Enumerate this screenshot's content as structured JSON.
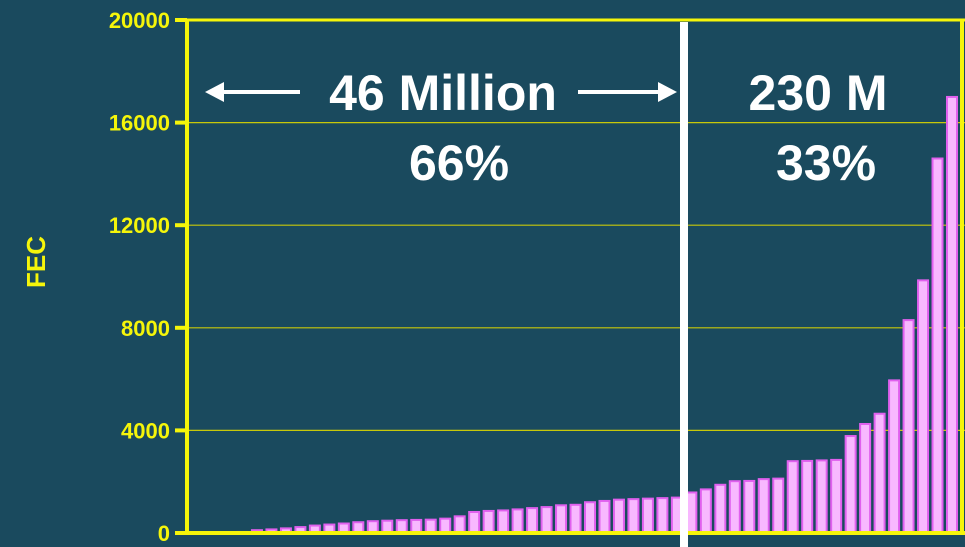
{
  "chart_data": {
    "type": "bar",
    "ylabel": "FEC",
    "ylim": [
      0,
      20000
    ],
    "yticks": [
      "0",
      "4000",
      "8000",
      "12000",
      "16000",
      "20000"
    ],
    "grid": true,
    "bar_color": "#e060ee",
    "bar_highlight": "#f8b8ff",
    "values": [
      20,
      40,
      110,
      140,
      180,
      230,
      290,
      330,
      370,
      420,
      460,
      480,
      500,
      510,
      520,
      560,
      650,
      820,
      860,
      880,
      920,
      970,
      1010,
      1080,
      1100,
      1200,
      1250,
      1300,
      1320,
      1340,
      1360,
      1380,
      1580,
      1700,
      1880,
      2020,
      2030,
      2100,
      2120,
      2800,
      2810,
      2830,
      2850,
      3780,
      4250,
      4650,
      5950,
      8300,
      9850,
      14600,
      17000
    ],
    "divider_after_index": 32,
    "annotations": {
      "left_total": "46 Million",
      "left_pct": "66%",
      "right_total": "230 M",
      "right_pct": "33%"
    }
  }
}
